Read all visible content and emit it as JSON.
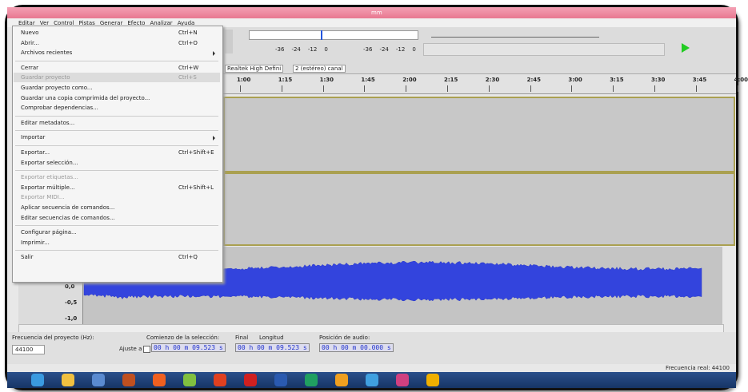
{
  "window": {
    "title": "mm"
  },
  "menubar": [
    "Editar",
    "Ver",
    "Control",
    "Pistas",
    "Generar",
    "Efecto",
    "Analizar",
    "Ayuda"
  ],
  "file_menu": {
    "groups": [
      [
        {
          "label": "Nuevo",
          "shortcut": "Ctrl+N"
        },
        {
          "label": "Abrir...",
          "shortcut": "Ctrl+O"
        },
        {
          "label": "Archivos recientes",
          "submenu": true
        }
      ],
      [
        {
          "label": "Cerrar",
          "shortcut": "Ctrl+W"
        },
        {
          "label": "Guardar proyecto",
          "shortcut": "Ctrl+S",
          "disabled": true
        },
        {
          "label": "Guardar proyecto como..."
        },
        {
          "label": "Guardar una copia comprimida del proyecto..."
        },
        {
          "label": "Comprobar dependencias..."
        }
      ],
      [
        {
          "label": "Editar metadatos..."
        }
      ],
      [
        {
          "label": "Importar",
          "submenu": true
        }
      ],
      [
        {
          "label": "Exportar...",
          "shortcut": "Ctrl+Shift+E"
        },
        {
          "label": "Exportar selección..."
        }
      ],
      [
        {
          "label": "Exportar etiquetas...",
          "disabled": true
        },
        {
          "label": "Exportar múltiple...",
          "shortcut": "Ctrl+Shift+L"
        },
        {
          "label": "Exportar MIDI...",
          "disabled": true
        },
        {
          "label": "Aplicar secuencia de comandos..."
        },
        {
          "label": "Editar secuencias de comandos..."
        }
      ],
      [
        {
          "label": "Configurar página..."
        },
        {
          "label": "Imprimir..."
        }
      ],
      [
        {
          "label": "Salir",
          "shortcut": "Ctrl+Q"
        }
      ]
    ]
  },
  "toolbar": {
    "meter_scale": [
      "-36",
      "-24",
      "-12",
      "0"
    ],
    "device": "Realtek High Defini",
    "channels": "2 (estéreo) canal"
  },
  "timeline": [
    "1:00",
    "1:15",
    "1:30",
    "1:45",
    "2:00",
    "2:15",
    "2:30",
    "2:45",
    "3:00",
    "3:15",
    "3:30",
    "3:45",
    "4:00"
  ],
  "track": {
    "amplitude_labels": [
      "0,0",
      "-0,5",
      "-1,0"
    ]
  },
  "selection_bar": {
    "rate_label": "Frecuencia del proyecto (Hz):",
    "rate": "44100",
    "start_label": "Comienzo de la selección:",
    "end_option": "Final",
    "length_option": "Longitud",
    "snap": "Ajuste a",
    "position_label": "Posición de audio:",
    "start": "00 h 00 m 09.523 s",
    "end": "00 h 00 m 09.523 s",
    "position": "00 h 00 m 00.000 s"
  },
  "status": "Frecuencia real: 44100"
}
